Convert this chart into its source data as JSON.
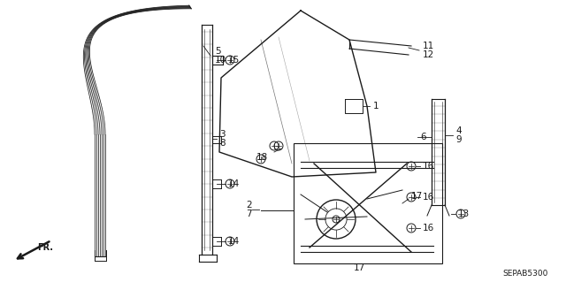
{
  "background_color": "#ffffff",
  "line_color": "#1a1a1a",
  "diagram_code": "SEPAB5300",
  "fr_label": "FR.",
  "figsize": [
    6.4,
    3.19
  ],
  "dpi": 100
}
